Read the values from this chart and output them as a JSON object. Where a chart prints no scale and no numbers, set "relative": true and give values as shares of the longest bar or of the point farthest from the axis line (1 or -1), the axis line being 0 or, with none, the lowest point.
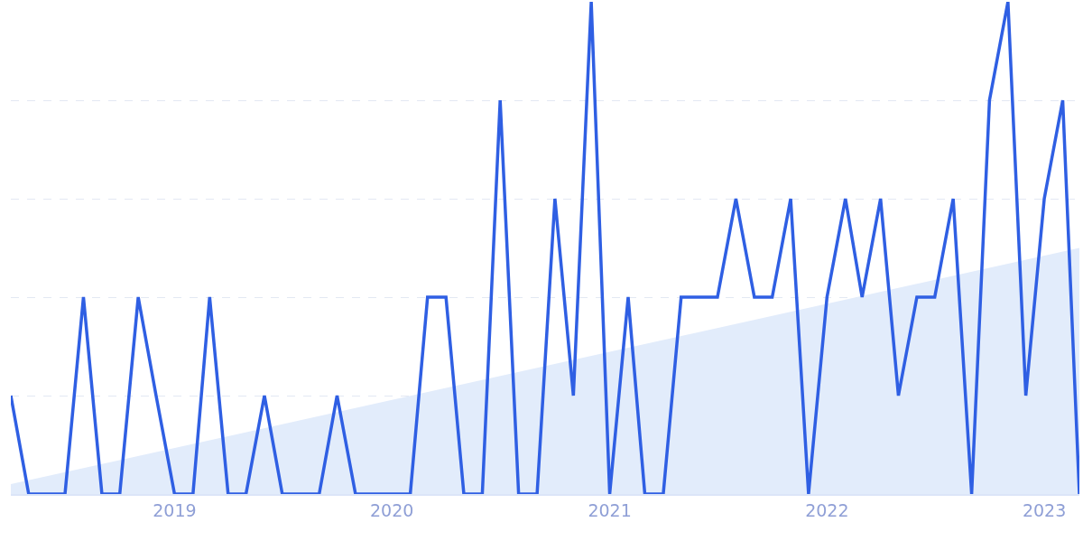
{
  "chart_data": {
    "type": "line",
    "relative": true,
    "x": [
      "2018-04",
      "2018-05",
      "2018-06",
      "2018-07",
      "2018-08",
      "2018-09",
      "2018-10",
      "2018-11",
      "2018-12",
      "2019-01",
      "2019-02",
      "2019-03",
      "2019-04",
      "2019-05",
      "2019-06",
      "2019-07",
      "2019-08",
      "2019-09",
      "2019-10",
      "2019-11",
      "2019-12",
      "2020-01",
      "2020-02",
      "2020-03",
      "2020-04",
      "2020-05",
      "2020-06",
      "2020-07",
      "2020-08",
      "2020-09",
      "2020-10",
      "2020-11",
      "2020-12",
      "2021-01",
      "2021-02",
      "2021-03",
      "2021-04",
      "2021-05",
      "2021-06",
      "2021-07",
      "2021-08",
      "2021-09",
      "2021-10",
      "2021-11",
      "2021-12",
      "2022-01",
      "2022-02",
      "2022-03",
      "2022-04",
      "2022-05",
      "2022-06",
      "2022-07",
      "2022-08",
      "2022-09",
      "2022-10",
      "2022-11",
      "2022-12",
      "2023-01",
      "2023-02",
      "2023-03"
    ],
    "series": [
      {
        "type": "area",
        "color": "#e2ecfb",
        "x": [
          "2018-04",
          "2023-03"
        ],
        "values": [
          0.02,
          0.5
        ]
      },
      {
        "color": "#2f5fe3",
        "values": [
          0.2,
          0,
          0,
          0,
          0.4,
          0,
          0,
          0.4,
          0.2,
          0,
          0,
          0.4,
          0,
          0,
          0.2,
          0,
          0,
          0,
          0.2,
          0,
          0,
          0,
          0,
          0.4,
          0.4,
          0,
          0,
          0.8,
          0,
          0,
          0.6,
          0.2,
          1,
          0,
          0.4,
          0,
          0,
          0.4,
          0.4,
          0.4,
          0.6,
          0.4,
          0.4,
          0.6,
          0,
          0.4,
          0.6,
          0.4,
          0.6,
          0.2,
          0.4,
          0.4,
          0.6,
          0,
          0.8,
          1,
          0.2,
          0.6,
          0.8,
          0
        ]
      }
    ],
    "xlim": [
      "2018-04",
      "2023-03"
    ],
    "xticks": [
      {
        "value": "2019-01",
        "label": "2019"
      },
      {
        "value": "2020-01",
        "label": "2020"
      },
      {
        "value": "2021-01",
        "label": "2021"
      },
      {
        "value": "2022-01",
        "label": "2022"
      },
      {
        "value": "2023-01",
        "label": "2023"
      }
    ],
    "grid": "y",
    "legend": false,
    "marker": "none",
    "line_style": "solid"
  }
}
